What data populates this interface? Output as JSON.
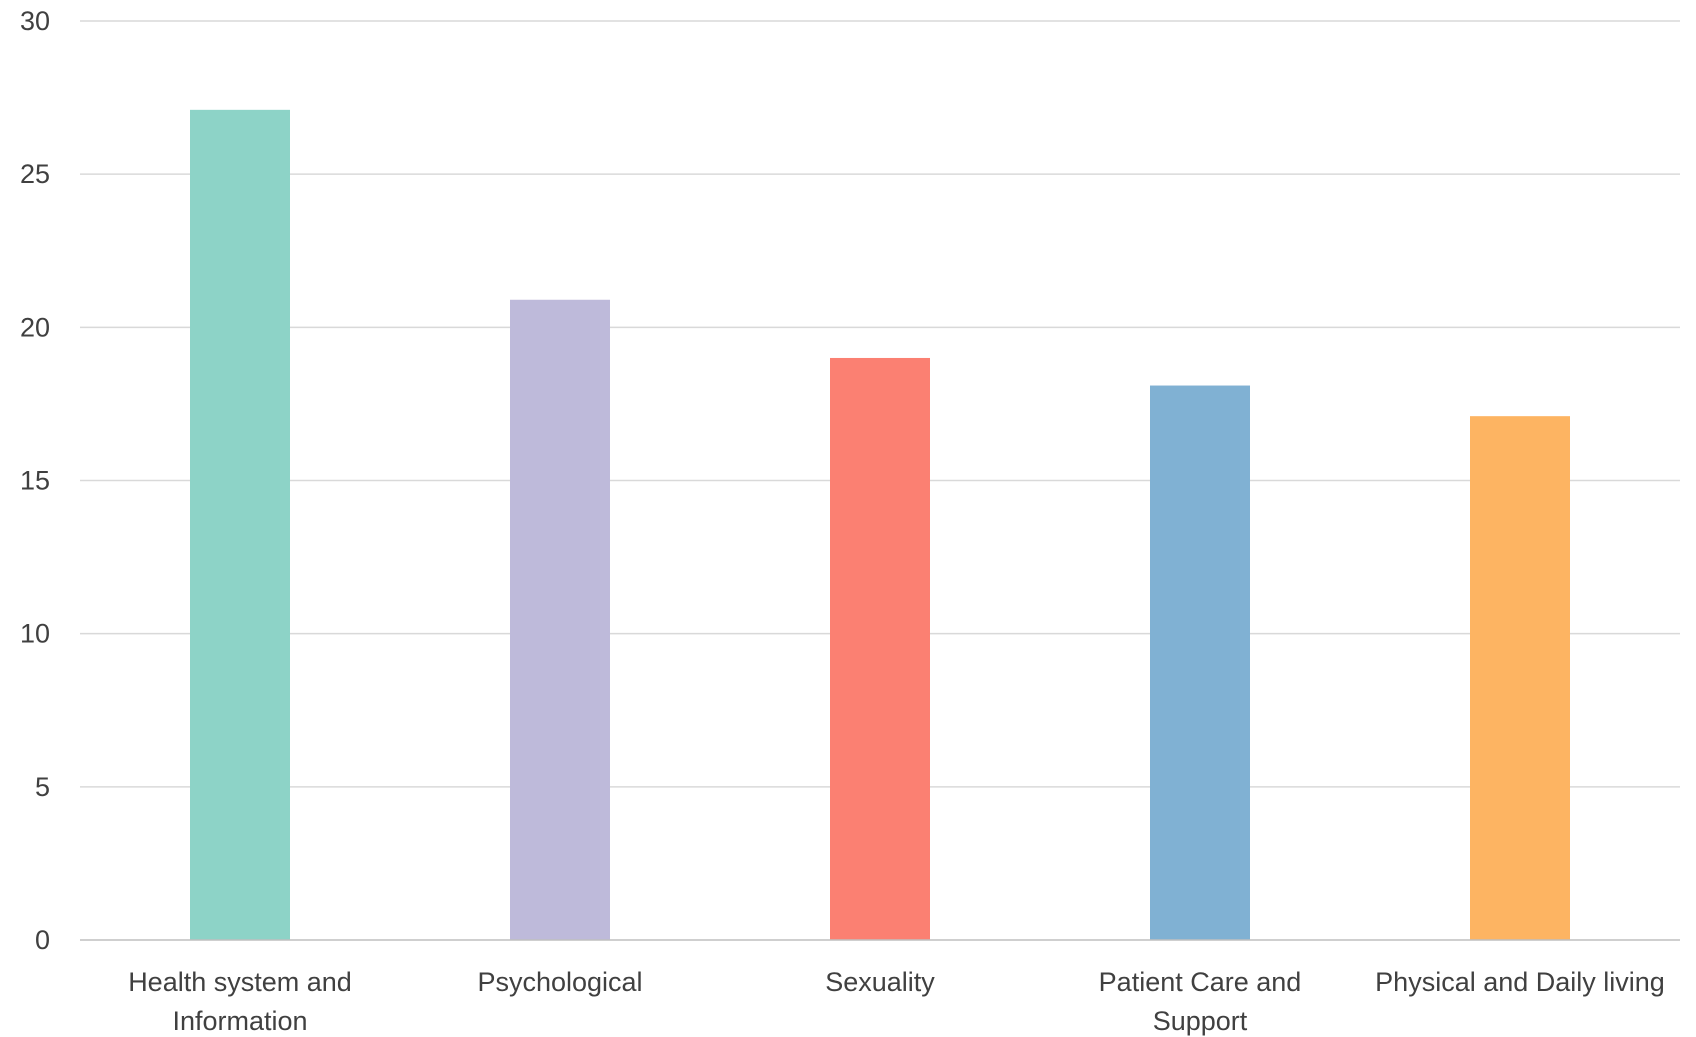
{
  "chart_data": {
    "type": "bar",
    "title": "",
    "xlabel": "",
    "ylabel": "",
    "categories": [
      [
        "Health system and",
        "Information"
      ],
      [
        "Psychological"
      ],
      [
        "Sexuality"
      ],
      [
        "Patient Care and",
        "Support"
      ],
      [
        "Physical and Daily living"
      ]
    ],
    "values": [
      27.1,
      20.9,
      19.0,
      18.1,
      17.1
    ],
    "colors": [
      "#8dd3c7",
      "#bebada",
      "#fb8072",
      "#80b1d3",
      "#fdb462"
    ],
    "ylim": [
      0,
      30
    ],
    "yticks": [
      0,
      5,
      10,
      15,
      20,
      25,
      30
    ],
    "grid": true,
    "legend": "none"
  }
}
